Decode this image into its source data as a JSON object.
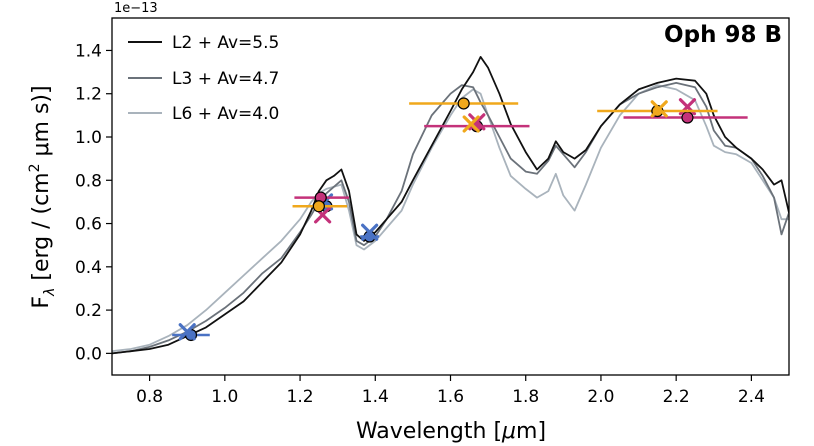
{
  "chart_data": {
    "type": "line",
    "title": "Oph 98 B",
    "xlabel": "Wavelength [μm]",
    "ylabel": "F_λ [erg / (cm² μm s)]",
    "ylabel_parts": {
      "main": "F",
      "sub": "λ",
      "rest": " [erg / (cm",
      "sup": "2",
      "rest2": " μm s)]"
    },
    "xlabel_parts": {
      "main": "Wavelength [",
      "mu": "μ",
      "rest": "m]"
    },
    "y_offset_text": "1e−13",
    "xlim": [
      0.7,
      2.5
    ],
    "ylim": [
      -0.1,
      1.55
    ],
    "xticks": [
      0.8,
      1.0,
      1.2,
      1.4,
      1.6,
      1.8,
      2.0,
      2.2,
      2.4
    ],
    "xtick_labels": [
      "0.8",
      "1.0",
      "1.2",
      "1.4",
      "1.6",
      "1.8",
      "2.0",
      "2.2",
      "2.4"
    ],
    "yticks": [
      0.0,
      0.2,
      0.4,
      0.6,
      0.8,
      1.0,
      1.2,
      1.4
    ],
    "ytick_labels": [
      "0.0",
      "0.2",
      "0.4",
      "0.6",
      "0.8",
      "1.0",
      "1.2",
      "1.4"
    ],
    "legend_position": "top-left",
    "series": [
      {
        "name": "L2 + Av=5.5",
        "color": "#111111",
        "x": [
          0.7,
          0.75,
          0.8,
          0.85,
          0.9,
          0.95,
          1.0,
          1.05,
          1.1,
          1.15,
          1.2,
          1.23,
          1.25,
          1.27,
          1.29,
          1.31,
          1.33,
          1.35,
          1.37,
          1.4,
          1.43,
          1.47,
          1.5,
          1.55,
          1.6,
          1.63,
          1.66,
          1.68,
          1.7,
          1.73,
          1.76,
          1.8,
          1.83,
          1.86,
          1.88,
          1.9,
          1.93,
          1.96,
          2.0,
          2.05,
          2.1,
          2.15,
          2.2,
          2.25,
          2.28,
          2.3,
          2.33,
          2.36,
          2.4,
          2.43,
          2.46,
          2.48,
          2.5
        ],
        "y": [
          0.0,
          0.01,
          0.02,
          0.04,
          0.08,
          0.12,
          0.18,
          0.24,
          0.33,
          0.42,
          0.55,
          0.66,
          0.75,
          0.8,
          0.82,
          0.85,
          0.75,
          0.55,
          0.52,
          0.56,
          0.62,
          0.7,
          0.8,
          0.96,
          1.12,
          1.22,
          1.3,
          1.37,
          1.32,
          1.2,
          1.06,
          0.93,
          0.85,
          0.9,
          0.98,
          0.93,
          0.9,
          0.94,
          1.05,
          1.15,
          1.22,
          1.25,
          1.27,
          1.26,
          1.2,
          1.1,
          1.0,
          0.95,
          0.9,
          0.85,
          0.78,
          0.8,
          0.65
        ]
      },
      {
        "name": "L3 + Av=4.7",
        "color": "#6b727a",
        "x": [
          0.7,
          0.75,
          0.8,
          0.85,
          0.9,
          0.95,
          1.0,
          1.05,
          1.1,
          1.15,
          1.2,
          1.23,
          1.25,
          1.27,
          1.29,
          1.31,
          1.33,
          1.35,
          1.37,
          1.4,
          1.43,
          1.47,
          1.5,
          1.55,
          1.6,
          1.63,
          1.66,
          1.68,
          1.7,
          1.73,
          1.76,
          1.8,
          1.83,
          1.86,
          1.88,
          1.9,
          1.93,
          1.96,
          2.0,
          2.05,
          2.1,
          2.15,
          2.2,
          2.25,
          2.28,
          2.3,
          2.33,
          2.36,
          2.4,
          2.43,
          2.46,
          2.48,
          2.5
        ],
        "y": [
          0.0,
          0.01,
          0.03,
          0.06,
          0.1,
          0.15,
          0.21,
          0.28,
          0.37,
          0.44,
          0.56,
          0.64,
          0.7,
          0.74,
          0.77,
          0.8,
          0.7,
          0.52,
          0.5,
          0.54,
          0.62,
          0.75,
          0.92,
          1.1,
          1.2,
          1.24,
          1.23,
          1.16,
          1.1,
          1.0,
          0.9,
          0.84,
          0.83,
          0.89,
          0.96,
          0.92,
          0.86,
          0.93,
          1.05,
          1.15,
          1.2,
          1.23,
          1.25,
          1.23,
          1.14,
          1.03,
          0.96,
          0.95,
          0.9,
          0.82,
          0.72,
          0.55,
          0.65
        ]
      },
      {
        "name": "L6 + Av=4.0",
        "color": "#a9b3bc",
        "x": [
          0.7,
          0.75,
          0.8,
          0.85,
          0.9,
          0.95,
          1.0,
          1.05,
          1.1,
          1.15,
          1.2,
          1.23,
          1.25,
          1.27,
          1.29,
          1.31,
          1.33,
          1.35,
          1.37,
          1.4,
          1.43,
          1.47,
          1.5,
          1.55,
          1.6,
          1.63,
          1.66,
          1.68,
          1.7,
          1.73,
          1.76,
          1.8,
          1.83,
          1.86,
          1.88,
          1.9,
          1.93,
          1.96,
          2.0,
          2.05,
          2.1,
          2.15,
          2.2,
          2.25,
          2.28,
          2.3,
          2.33,
          2.36,
          2.4,
          2.43,
          2.46,
          2.48,
          2.5
        ],
        "y": [
          0.01,
          0.02,
          0.04,
          0.08,
          0.13,
          0.2,
          0.28,
          0.36,
          0.44,
          0.52,
          0.62,
          0.7,
          0.74,
          0.76,
          0.77,
          0.78,
          0.66,
          0.5,
          0.48,
          0.52,
          0.58,
          0.66,
          0.78,
          0.95,
          1.1,
          1.18,
          1.22,
          1.2,
          1.1,
          0.95,
          0.82,
          0.76,
          0.72,
          0.75,
          0.83,
          0.73,
          0.66,
          0.78,
          0.95,
          1.1,
          1.2,
          1.24,
          1.22,
          1.17,
          1.05,
          0.96,
          0.93,
          0.92,
          0.88,
          0.8,
          0.72,
          0.62,
          0.62
        ]
      }
    ],
    "photometry": [
      {
        "group": "blue",
        "color": "#4a72c4",
        "kind": "circle",
        "x": 0.91,
        "y": 0.085,
        "xerr": [
          0.86,
          0.96
        ]
      },
      {
        "group": "blue",
        "color": "#4a72c4",
        "kind": "x",
        "x": 0.9,
        "y": 0.1
      },
      {
        "group": "blue",
        "color": "#4a72c4",
        "kind": "circle",
        "x": 1.27,
        "y": 0.68,
        "xerr": [
          1.23,
          1.31
        ]
      },
      {
        "group": "blue",
        "color": "#4a72c4",
        "kind": "x",
        "x": 1.265,
        "y": 0.7
      },
      {
        "group": "blue",
        "color": "#4a72c4",
        "kind": "circle",
        "x": 1.385,
        "y": 0.54,
        "xerr": [
          1.36,
          1.41
        ]
      },
      {
        "group": "blue",
        "color": "#4a72c4",
        "kind": "x",
        "x": 1.385,
        "y": 0.56
      },
      {
        "group": "magenta",
        "color": "#c4327a",
        "kind": "circle",
        "x": 1.255,
        "y": 0.72,
        "xerr": [
          1.185,
          1.33
        ]
      },
      {
        "group": "magenta",
        "color": "#c4327a",
        "kind": "x",
        "x": 1.26,
        "y": 0.64
      },
      {
        "group": "magenta",
        "color": "#c4327a",
        "kind": "circle",
        "x": 1.67,
        "y": 1.05,
        "xerr": [
          1.53,
          1.81
        ]
      },
      {
        "group": "magenta",
        "color": "#c4327a",
        "kind": "x",
        "x": 1.67,
        "y": 1.07
      },
      {
        "group": "magenta",
        "color": "#c4327a",
        "kind": "circle",
        "x": 2.23,
        "y": 1.09,
        "xerr": [
          2.06,
          2.39
        ]
      },
      {
        "group": "magenta",
        "color": "#c4327a",
        "kind": "x",
        "x": 2.23,
        "y": 1.14
      },
      {
        "group": "orange",
        "color": "#f0a81c",
        "kind": "circle",
        "x": 1.25,
        "y": 0.68,
        "xerr": [
          1.18,
          1.325
        ]
      },
      {
        "group": "orange",
        "color": "#f0a81c",
        "kind": "circle",
        "x": 1.635,
        "y": 1.155,
        "xerr": [
          1.49,
          1.78
        ]
      },
      {
        "group": "orange",
        "color": "#f0a81c",
        "kind": "x",
        "x": 1.655,
        "y": 1.06
      },
      {
        "group": "orange",
        "color": "#f0a81c",
        "kind": "circle",
        "x": 2.15,
        "y": 1.12,
        "xerr": [
          1.99,
          2.31
        ]
      },
      {
        "group": "orange",
        "color": "#f0a81c",
        "kind": "x",
        "x": 2.155,
        "y": 1.13
      }
    ]
  }
}
